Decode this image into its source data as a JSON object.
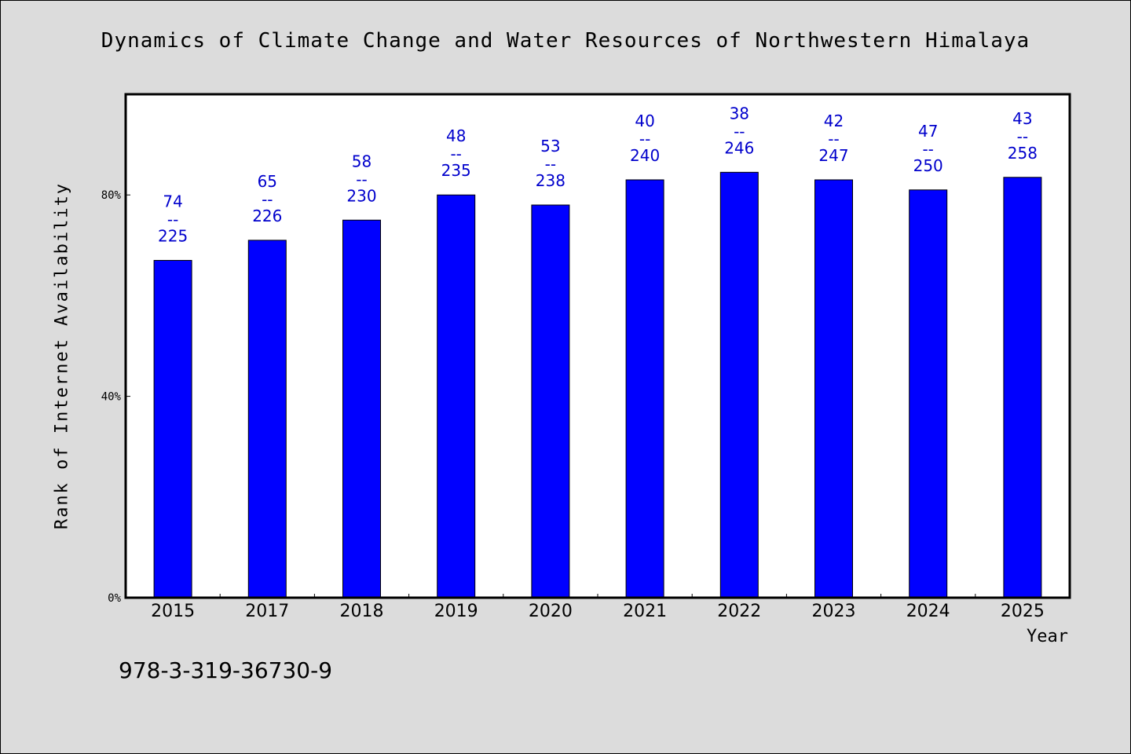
{
  "title": "Dynamics of Climate Change and Water Resources of Northwestern Himalaya",
  "footer_text": "978-3-319-36730-9",
  "colors": {
    "bar": "#0000ff",
    "label": "#0000cc",
    "background": "#dcdcdc",
    "plot_bg": "#ffffff"
  },
  "chart_data": {
    "type": "bar",
    "title": "Dynamics of Climate Change and Water Resources of Northwestern Himalaya",
    "xlabel": "Year",
    "ylabel": "Rank of Internet Availability",
    "ylim": [
      0,
      100
    ],
    "yticks": [
      0,
      40,
      80
    ],
    "ytick_labels": [
      "0%",
      "40%",
      "80%"
    ],
    "grid": false,
    "categories": [
      "2015",
      "2017",
      "2018",
      "2019",
      "2020",
      "2021",
      "2022",
      "2023",
      "2024",
      "2025"
    ],
    "series": [
      {
        "values": [
          67,
          71,
          75,
          80,
          78,
          83,
          84.5,
          83,
          81,
          83.5
        ]
      }
    ],
    "data_labels": [
      {
        "rank": "74",
        "separator": "--",
        "total": "225"
      },
      {
        "rank": "65",
        "separator": "--",
        "total": "226"
      },
      {
        "rank": "58",
        "separator": "--",
        "total": "230"
      },
      {
        "rank": "48",
        "separator": "--",
        "total": "235"
      },
      {
        "rank": "53",
        "separator": "--",
        "total": "238"
      },
      {
        "rank": "40",
        "separator": "--",
        "total": "240"
      },
      {
        "rank": "38",
        "separator": "--",
        "total": "246"
      },
      {
        "rank": "42",
        "separator": "--",
        "total": "247"
      },
      {
        "rank": "47",
        "separator": "--",
        "total": "250"
      },
      {
        "rank": "43",
        "separator": "--",
        "total": "258"
      }
    ]
  }
}
